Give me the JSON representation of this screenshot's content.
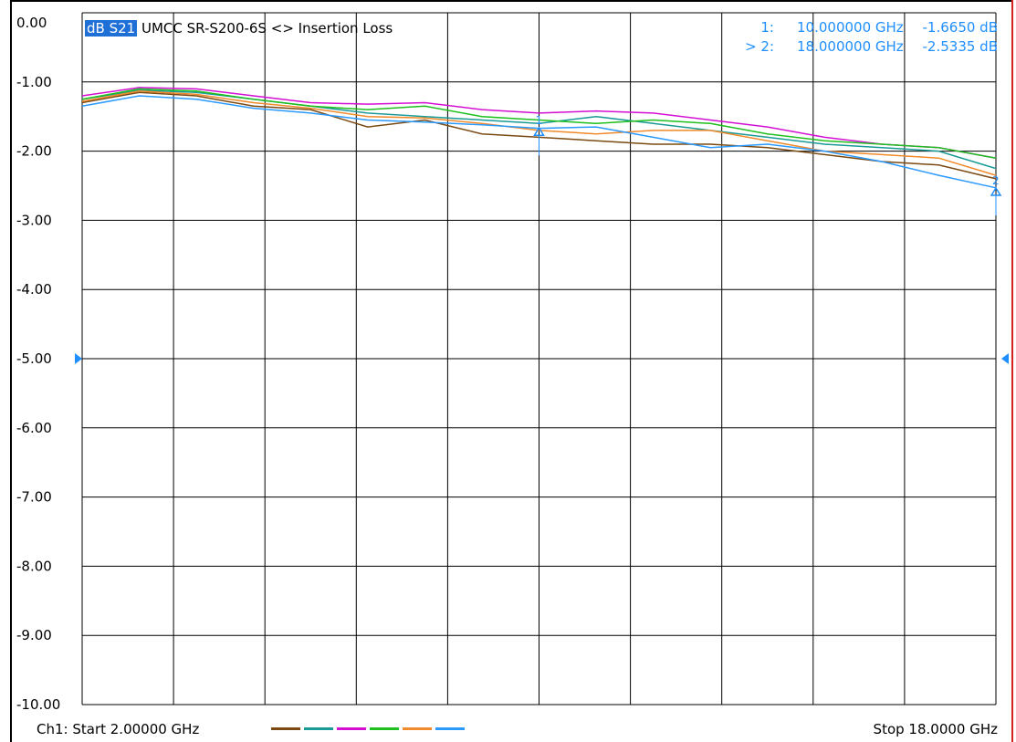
{
  "header": {
    "trace_badge": "dB S21",
    "title": "UMCC  SR-S200-6S <> Insertion Loss"
  },
  "markers": [
    {
      "id": "1:",
      "freq": "10.000000 GHz",
      "value": "-1.6650 dB"
    },
    {
      "id": "> 2:",
      "freq": "18.000000 GHz",
      "value": "-2.5335 dB"
    }
  ],
  "footer": {
    "start": "Ch1: Start  2.00000 GHz",
    "stop": "Stop  18.0000 GHz"
  },
  "colors": {
    "marker_text": "#1f8fff",
    "badge_bg": "#1e6fd6",
    "right_border": "#d32020",
    "traces": [
      "#7a4a12",
      "#1a9a96",
      "#d40fd4",
      "#1fbf1f",
      "#f08a2a",
      "#2a9aff"
    ]
  },
  "chart_data": {
    "type": "line",
    "title": "UMCC  SR-S200-6S <> Insertion Loss",
    "xlabel": "",
    "ylabel": "",
    "xlim": [
      2,
      18
    ],
    "ylim": [
      -10,
      0
    ],
    "y_ticks": [
      "0.00",
      "-1.00",
      "-2.00",
      "-3.00",
      "-4.00",
      "-5.00",
      "-6.00",
      "-7.00",
      "-8.00",
      "-9.00",
      "-10.00"
    ],
    "grid": true,
    "reference_level": -5,
    "markers": [
      {
        "label": "1",
        "x": 10,
        "y": -1.665
      },
      {
        "label": "2",
        "x": 18,
        "y": -2.5335
      }
    ],
    "x": [
      2,
      3,
      4,
      5,
      6,
      7,
      8,
      9,
      10,
      11,
      12,
      13,
      14,
      15,
      16,
      17,
      18
    ],
    "series": [
      {
        "color": "#7a4a12",
        "values": [
          -1.3,
          -1.15,
          -1.2,
          -1.35,
          -1.4,
          -1.65,
          -1.55,
          -1.75,
          -1.8,
          -1.85,
          -1.9,
          -1.9,
          -1.95,
          -2.05,
          -2.15,
          -2.2,
          -2.4
        ]
      },
      {
        "color": "#1a9a96",
        "values": [
          -1.25,
          -1.12,
          -1.15,
          -1.25,
          -1.35,
          -1.45,
          -1.5,
          -1.55,
          -1.6,
          -1.5,
          -1.6,
          -1.7,
          -1.8,
          -1.9,
          -1.95,
          -2.0,
          -2.25
        ]
      },
      {
        "color": "#d40fd4",
        "values": [
          -1.2,
          -1.08,
          -1.1,
          -1.2,
          -1.3,
          -1.32,
          -1.3,
          -1.4,
          -1.45,
          -1.42,
          -1.45,
          -1.55,
          -1.65,
          -1.8,
          -1.9,
          -1.95,
          -2.1
        ]
      },
      {
        "color": "#1fbf1f",
        "values": [
          -1.25,
          -1.1,
          -1.13,
          -1.25,
          -1.35,
          -1.4,
          -1.35,
          -1.5,
          -1.55,
          -1.6,
          -1.55,
          -1.6,
          -1.75,
          -1.85,
          -1.9,
          -1.95,
          -2.1
        ]
      },
      {
        "color": "#f08a2a",
        "values": [
          -1.28,
          -1.13,
          -1.18,
          -1.3,
          -1.38,
          -1.5,
          -1.52,
          -1.6,
          -1.7,
          -1.75,
          -1.7,
          -1.7,
          -1.85,
          -2.0,
          -2.05,
          -2.1,
          -2.35
        ]
      },
      {
        "color": "#2a9aff",
        "values": [
          -1.35,
          -1.2,
          -1.25,
          -1.38,
          -1.45,
          -1.55,
          -1.58,
          -1.62,
          -1.67,
          -1.65,
          -1.8,
          -1.95,
          -1.9,
          -2.0,
          -2.15,
          -2.35,
          -2.53
        ]
      }
    ]
  }
}
